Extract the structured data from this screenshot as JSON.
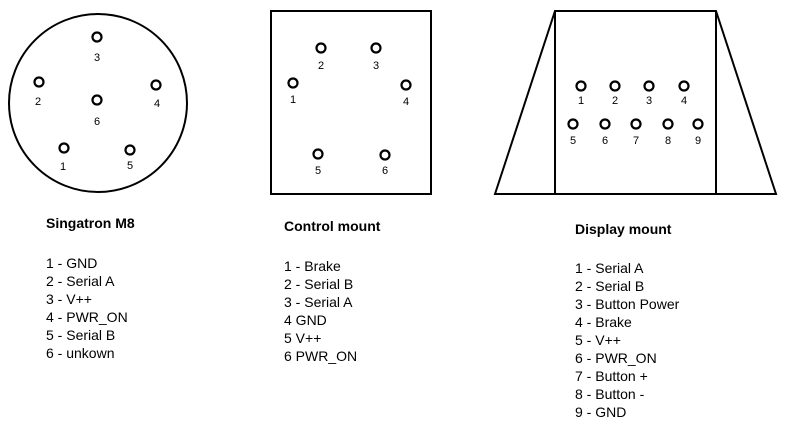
{
  "connectors": {
    "singatron": {
      "title": "Singatron M8",
      "pin_labels": [
        "3",
        "2",
        "4",
        "6",
        "1",
        "5"
      ],
      "pins": [
        "1 - GND",
        "2 - Serial A",
        "3 - V++",
        "4 - PWR_ON",
        "5 - Serial B",
        "6 - unkown"
      ]
    },
    "control": {
      "title": "Control mount",
      "pin_labels": [
        "2",
        "3",
        "1",
        "4",
        "5",
        "6"
      ],
      "pins": [
        "1 - Brake",
        "2 - Serial B",
        "3 - Serial A",
        "4 GND",
        "5 V++",
        "6 PWR_ON"
      ]
    },
    "display": {
      "title": "Display mount",
      "pin_labels": [
        "1",
        "2",
        "3",
        "4",
        "5",
        "6",
        "7",
        "8",
        "9"
      ],
      "pins": [
        "1 - Serial A",
        "2 - Serial B",
        "3 - Button Power",
        "4 - Brake",
        "5 - V++",
        "6 - PWR_ON",
        "7 - Button +",
        "8 - Button -",
        "9 - GND"
      ]
    }
  }
}
